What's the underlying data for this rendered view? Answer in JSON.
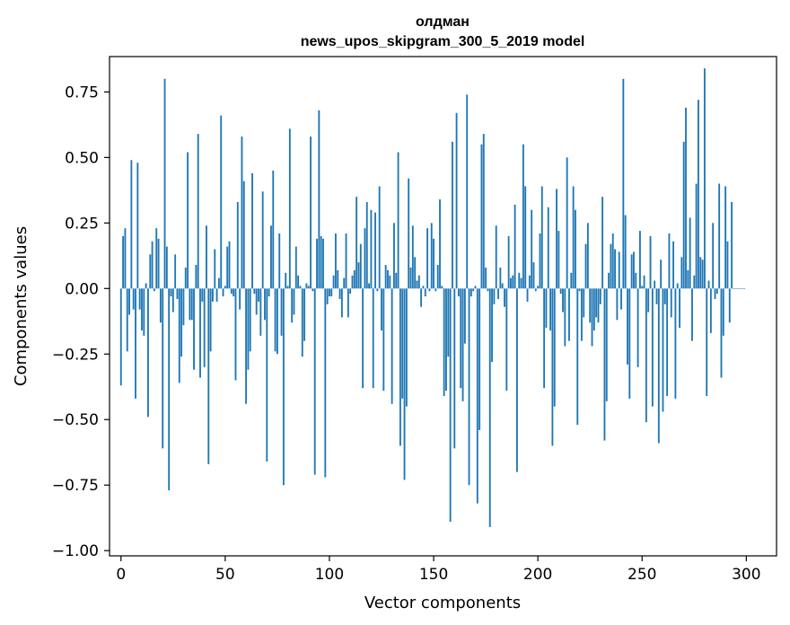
{
  "chart_data": {
    "type": "bar",
    "title": [
      "олдман",
      "news_upos_skipgram_300_5_2019 model"
    ],
    "xlabel": "Vector components",
    "ylabel": "Components values",
    "xlim": [
      -5.5,
      314.5
    ],
    "ylim": [
      -1.02,
      0.885
    ],
    "xticks": [
      0,
      50,
      100,
      150,
      200,
      250,
      300
    ],
    "xtick_labels": [
      "0",
      "50",
      "100",
      "150",
      "200",
      "250",
      "300"
    ],
    "yticks": [
      0.75,
      0.5,
      0.25,
      0.0,
      -0.25,
      -0.5,
      -0.75,
      -1.0
    ],
    "ytick_labels": [
      "0.75",
      "0.50",
      "0.25",
      "0.00",
      "−0.25",
      "−0.50",
      "−0.75",
      "−1.00"
    ],
    "bar_color": "#1f77b4",
    "x": "0..299",
    "values": [
      -0.37,
      0.2,
      0.23,
      -0.24,
      -0.1,
      0.49,
      -0.08,
      -0.42,
      0.48,
      -0.08,
      -0.16,
      -0.18,
      0.02,
      -0.49,
      0.13,
      0.18,
      -0.01,
      0.23,
      0.19,
      -0.13,
      -0.61,
      0.8,
      0.16,
      -0.77,
      -0.03,
      -0.09,
      0.13,
      -0.04,
      -0.36,
      -0.26,
      -0.14,
      0.08,
      0.52,
      -0.12,
      -0.12,
      -0.31,
      0.09,
      0.59,
      -0.34,
      -0.05,
      -0.3,
      0.24,
      -0.67,
      -0.24,
      -0.05,
      0.15,
      -0.05,
      0.04,
      0.66,
      -0.03,
      0.01,
      0.16,
      0.18,
      -0.02,
      -0.03,
      -0.35,
      0.33,
      -0.08,
      0.58,
      0.41,
      -0.44,
      -0.31,
      -0.24,
      0.44,
      -0.02,
      -0.1,
      -0.05,
      -0.18,
      0.37,
      -0.12,
      -0.66,
      -0.03,
      0.24,
      0.45,
      -0.24,
      -0.25,
      0.21,
      -0.18,
      -0.75,
      0.06,
      0.01,
      0.61,
      -0.13,
      -0.1,
      0.16,
      0.05,
      0.01,
      -0.26,
      -0.2,
      0.02,
      0.01,
      0.58,
      -0.01,
      -0.71,
      0.19,
      0.68,
      0.2,
      0.19,
      -0.72,
      -0.06,
      -0.03,
      -0.03,
      0.05,
      0.21,
      0.07,
      -0.04,
      -0.11,
      0.04,
      0.21,
      -0.11,
      -0.02,
      0.05,
      0.07,
      0.35,
      0.1,
      0.17,
      -0.38,
      0.23,
      0.33,
      0.02,
      0.3,
      -0.38,
      0.29,
      -0.01,
      0.39,
      -0.16,
      -0.39,
      0.09,
      0.07,
      0.05,
      -0.44,
      0.25,
      0.06,
      0.52,
      -0.6,
      -0.42,
      -0.73,
      -0.45,
      0.42,
      0.08,
      0.24,
      0.12,
      0.03,
      0.05,
      -0.07,
      0.01,
      -0.03,
      0.23,
      -0.01,
      0.25,
      0.19,
      -0.01,
      0.09,
      0.34,
      0.01,
      -0.41,
      -0.39,
      -0.26,
      -0.89,
      0.56,
      -0.61,
      0.67,
      -0.03,
      -0.38,
      -0.43,
      -0.21,
      0.74,
      -0.75,
      -0.03,
      -0.01,
      0.01,
      -0.82,
      -0.54,
      0.55,
      0.59,
      0.08,
      -0.01,
      -0.91,
      -0.28,
      -0.06,
      0.24,
      -0.04,
      0.08,
      0.02,
      -0.07,
      -0.39,
      0.2,
      0.04,
      0.05,
      0.32,
      -0.7,
      0.06,
      0.04,
      0.55,
      0.39,
      -0.05,
      0.05,
      0.3,
      0.1,
      -0.01,
      0.01,
      0.21,
      0.39,
      -0.38,
      -0.15,
      0.31,
      -0.16,
      -0.6,
      -0.45,
      0.38,
      0.22,
      -0.02,
      -0.09,
      -0.22,
      0.5,
      -0.2,
      0.06,
      0.39,
      0.3,
      -0.52,
      -0.01,
      -0.2,
      -0.11,
      0.17,
      0.25,
      -0.13,
      -0.22,
      -0.16,
      -0.11,
      -0.13,
      -0.06,
      0.35,
      -0.58,
      -0.43,
      0.06,
      0.17,
      0.21,
      0.15,
      -0.12,
      0.14,
      -0.08,
      0.8,
      0.28,
      -0.29,
      -0.42,
      0.13,
      0.14,
      0.06,
      -0.3,
      0.22,
      0.01,
      0.05,
      -0.51,
      -0.09,
      0.2,
      -0.45,
      0.03,
      -0.06,
      -0.59,
      0.11,
      -0.47,
      -0.06,
      -0.41,
      0.21,
      -0.11,
      0.18,
      -0.42,
      0.02,
      -0.15,
      0.12,
      0.56,
      0.69,
      0.07,
      0.27,
      -0.2,
      0.05,
      0.4,
      0.72,
      0.12,
      0.11,
      0.84,
      -0.41,
      0.03,
      -0.17,
      0.25,
      -0.04,
      -0.02,
      0.4,
      -0.34,
      -0.18,
      0.39,
      0.18,
      -0.13,
      0.33,
      0.0,
      0.0,
      0.0,
      0.0,
      0.0,
      0.0
    ]
  }
}
